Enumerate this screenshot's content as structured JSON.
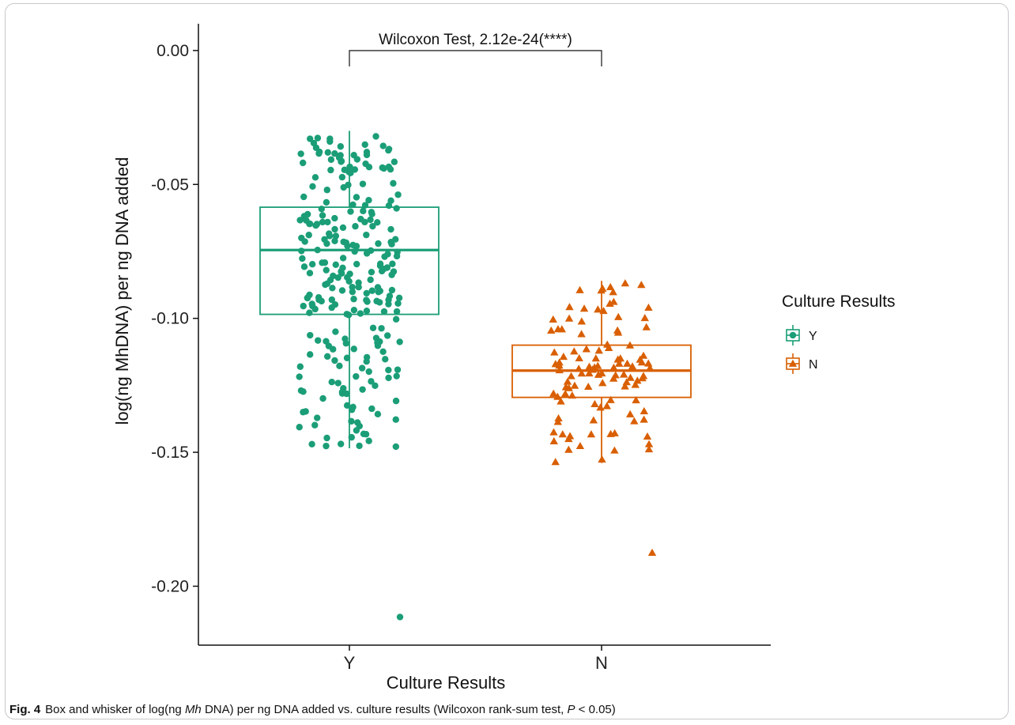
{
  "chart_data": {
    "type": "box",
    "xlabel": "Culture Results",
    "ylabel": "log(ng MhDNA) per ng DNA added",
    "categories": [
      "Y",
      "N"
    ],
    "ylim": [
      -0.222,
      0.01
    ],
    "yticks": [
      0.0,
      -0.05,
      -0.1,
      -0.15,
      -0.2
    ],
    "ytick_labels": [
      "0.00",
      "-0.05",
      "-0.10",
      "-0.15",
      "-0.20"
    ],
    "legend": {
      "title": "Culture Results",
      "placement": "right",
      "entries": [
        "Y",
        "N"
      ]
    },
    "colors": {
      "Y": "#1b9e77",
      "N": "#d95f02"
    },
    "grid": false,
    "annotation": "Wilcoxon Test, 2.12e-24(****)",
    "boxes": [
      {
        "name": "Y",
        "q1": -0.0985,
        "median": -0.0745,
        "q3": -0.0585,
        "whisker_low": -0.1485,
        "whisker_high": -0.03
      },
      {
        "name": "N",
        "q1": -0.1295,
        "median": -0.1195,
        "q3": -0.11,
        "whisker_low": -0.154,
        "whisker_high": -0.086
      }
    ],
    "outliers": [
      {
        "name": "Y",
        "values": [
          -0.2115
        ]
      },
      {
        "name": "N",
        "values": [
          -0.1875
        ]
      }
    ],
    "n_points": {
      "Y": 260,
      "N": 110
    }
  },
  "caption": {
    "label": "Fig. 4",
    "text_before": "Box and whisker of log(ng ",
    "italic_1": "Mh",
    "text_middle": " DNA) per ng DNA added vs. culture results (Wilcoxon rank-sum test, ",
    "italic_2": "P",
    "text_after": " < 0.05)"
  }
}
